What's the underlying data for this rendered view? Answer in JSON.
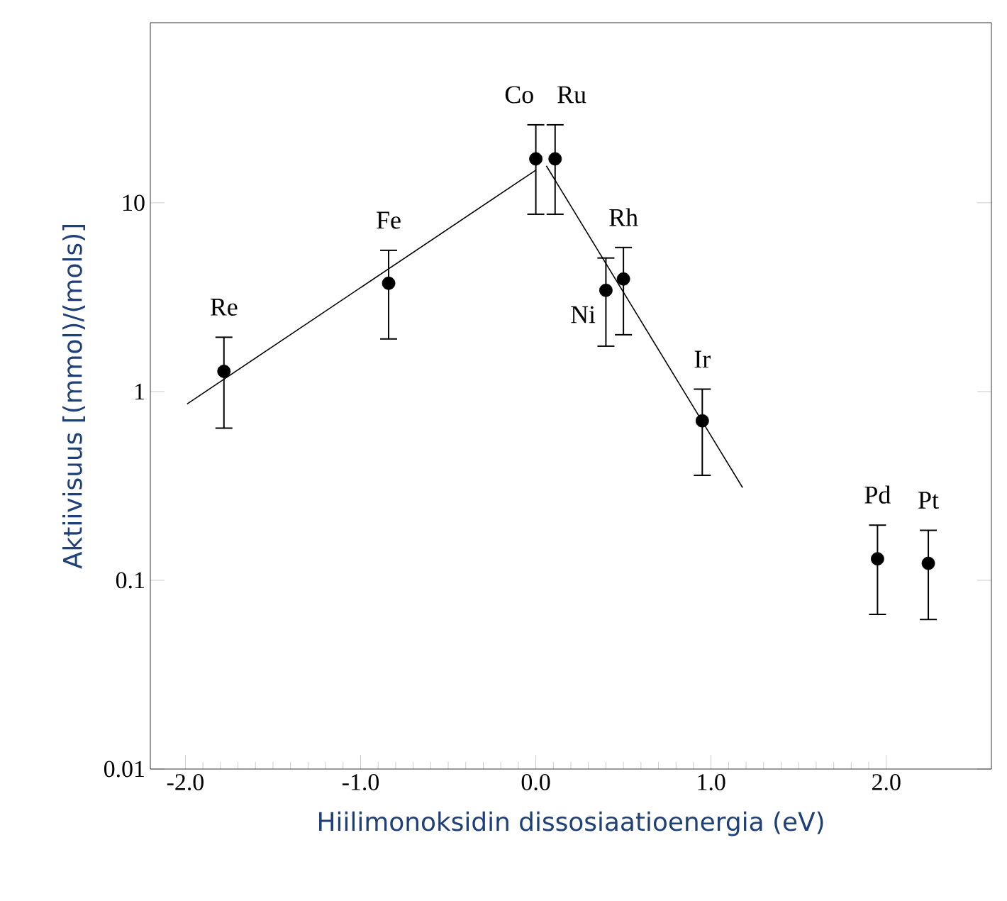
{
  "chart_data": {
    "type": "scatter",
    "xlabel": "Hiilimonoksidin dissosiaatioenergia (eV)",
    "ylabel": "Aktiivisuus [(mmol)/(mols)]",
    "xlim": [
      -2.2,
      2.6
    ],
    "xticks": [
      {
        "value": -2,
        "label": "-2.0"
      },
      {
        "value": -1,
        "label": "-1.0"
      },
      {
        "value": 0,
        "label": "0.0"
      },
      {
        "value": 1,
        "label": "1.0"
      },
      {
        "value": 2,
        "label": "2.0"
      }
    ],
    "ylim": [
      0.01,
      90
    ],
    "yticks": [
      0.01,
      0.1,
      1,
      10
    ],
    "log": "y",
    "grid": false,
    "series": [
      {
        "marker": "circle",
        "color": "#000000",
        "x": [
          -1.78,
          -0.84,
          0.0,
          0.11,
          0.4,
          0.5,
          0.95,
          1.95,
          2.24
        ],
        "values": [
          1.28,
          3.75,
          17.1,
          17.1,
          3.44,
          3.95,
          0.7,
          0.13,
          0.123
        ],
        "errors": [
          [
            0.64,
            1.94
          ],
          [
            1.9,
            5.6
          ],
          [
            8.7,
            25.9
          ],
          [
            8.7,
            25.9
          ],
          [
            1.74,
            5.1
          ],
          [
            2.0,
            5.8
          ],
          [
            0.36,
            1.03
          ],
          [
            0.066,
            0.196
          ],
          [
            0.062,
            0.184
          ]
        ]
      },
      {
        "type": "line",
        "color": "#000000",
        "marker": "none",
        "line_style": "solid",
        "x": [
          -1.99,
          0.0
        ],
        "values": [
          0.86,
          14.9
        ]
      },
      {
        "type": "line",
        "color": "#000000",
        "marker": "none",
        "line_style": "solid",
        "x": [
          0.06,
          1.18
        ],
        "values": [
          15.7,
          0.31
        ]
      }
    ],
    "annotations": [
      {
        "text": "Re",
        "x": -1.78,
        "y": 1.28
      },
      {
        "text": "Fe",
        "x": -0.84,
        "y": 3.75
      },
      {
        "text": "Co",
        "x": 0.0,
        "y": 17.1
      },
      {
        "text": "Ru",
        "x": 0.11,
        "y": 17.1
      },
      {
        "text": "Ni",
        "x": 0.4,
        "y": 3.44
      },
      {
        "text": "Rh",
        "x": 0.5,
        "y": 3.95
      },
      {
        "text": "Ir",
        "x": 0.95,
        "y": 0.7
      },
      {
        "text": "Pd",
        "x": 1.95,
        "y": 0.13
      },
      {
        "text": "Pt",
        "x": 2.24,
        "y": 0.123
      }
    ]
  }
}
